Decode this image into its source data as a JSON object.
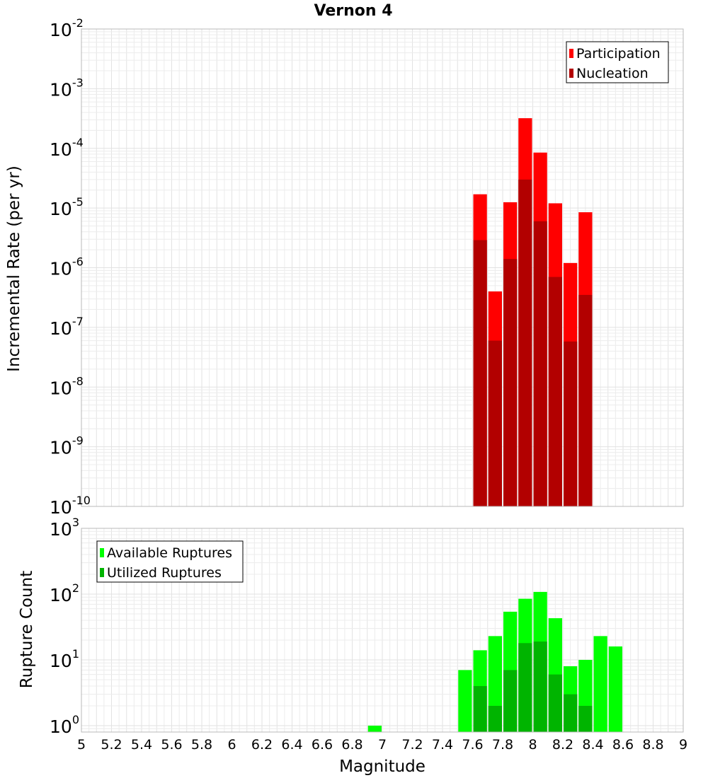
{
  "chart_data": [
    {
      "type": "bar",
      "title": "Vernon 4",
      "xlabel": "",
      "ylabel": "Incremental Rate (per yr)",
      "yscale": "log",
      "ylim": [
        1e-10,
        0.01
      ],
      "xlim": [
        5,
        9
      ],
      "bar_width": 0.1,
      "y_ticks": [
        {
          "base": "10",
          "exp": "-10",
          "value": 1e-10
        },
        {
          "base": "10",
          "exp": "-9",
          "value": 1e-09
        },
        {
          "base": "10",
          "exp": "-8",
          "value": 1e-08
        },
        {
          "base": "10",
          "exp": "-7",
          "value": 1e-07
        },
        {
          "base": "10",
          "exp": "-6",
          "value": 1e-06
        },
        {
          "base": "10",
          "exp": "-5",
          "value": 1e-05
        },
        {
          "base": "10",
          "exp": "-4",
          "value": 0.0001
        },
        {
          "base": "10",
          "exp": "-3",
          "value": 0.001
        },
        {
          "base": "10",
          "exp": "-2",
          "value": 0.01
        }
      ],
      "legend_position": "top-right",
      "series": [
        {
          "name": "Participation",
          "color": "#ff0000",
          "x": [
            7.65,
            7.75,
            7.85,
            7.95,
            8.05,
            8.15,
            8.25,
            8.35
          ],
          "values": [
            1.7e-05,
            4e-07,
            1.25e-05,
            0.00032,
            8.5e-05,
            1.2e-05,
            1.2e-06,
            8.5e-06
          ]
        },
        {
          "name": "Nucleation",
          "color": "#b20000",
          "x": [
            7.65,
            7.75,
            7.85,
            7.95,
            8.05,
            8.15,
            8.25,
            8.35
          ],
          "values": [
            2.9e-06,
            6e-08,
            1.4e-06,
            3e-05,
            6e-06,
            7e-07,
            5.8e-08,
            3.5e-07
          ]
        }
      ]
    },
    {
      "type": "bar",
      "title": "",
      "xlabel": "Magnitude",
      "ylabel": "Rupture Count",
      "yscale": "log",
      "ylim": [
        0.8,
        1000
      ],
      "xlim": [
        5,
        9
      ],
      "bar_width": 0.1,
      "x_ticks": [
        "5",
        "5.2",
        "5.4",
        "5.6",
        "5.8",
        "6",
        "6.2",
        "6.4",
        "6.6",
        "6.8",
        "7",
        "7.2",
        "7.4",
        "7.6",
        "7.8",
        "8",
        "8.2",
        "8.4",
        "8.6",
        "8.8",
        "9"
      ],
      "y_ticks": [
        {
          "base": "10",
          "exp": "0",
          "value": 1
        },
        {
          "base": "10",
          "exp": "1",
          "value": 10
        },
        {
          "base": "10",
          "exp": "2",
          "value": 100
        },
        {
          "base": "10",
          "exp": "3",
          "value": 1000
        }
      ],
      "legend_position": "top-left",
      "series": [
        {
          "name": "Available Ruptures",
          "color": "#00ff00",
          "x": [
            6.95,
            7.55,
            7.65,
            7.75,
            7.85,
            7.95,
            8.05,
            8.15,
            8.25,
            8.35,
            8.45,
            8.55
          ],
          "values": [
            1,
            7,
            14,
            23,
            54,
            85,
            108,
            43,
            8,
            10,
            23,
            16
          ]
        },
        {
          "name": "Utilized Ruptures",
          "color": "#00b400",
          "x": [
            7.65,
            7.75,
            7.85,
            7.95,
            8.05,
            8.15,
            8.25,
            8.35
          ],
          "values": [
            4,
            2,
            7,
            18,
            19,
            6,
            3,
            2
          ]
        }
      ]
    }
  ]
}
